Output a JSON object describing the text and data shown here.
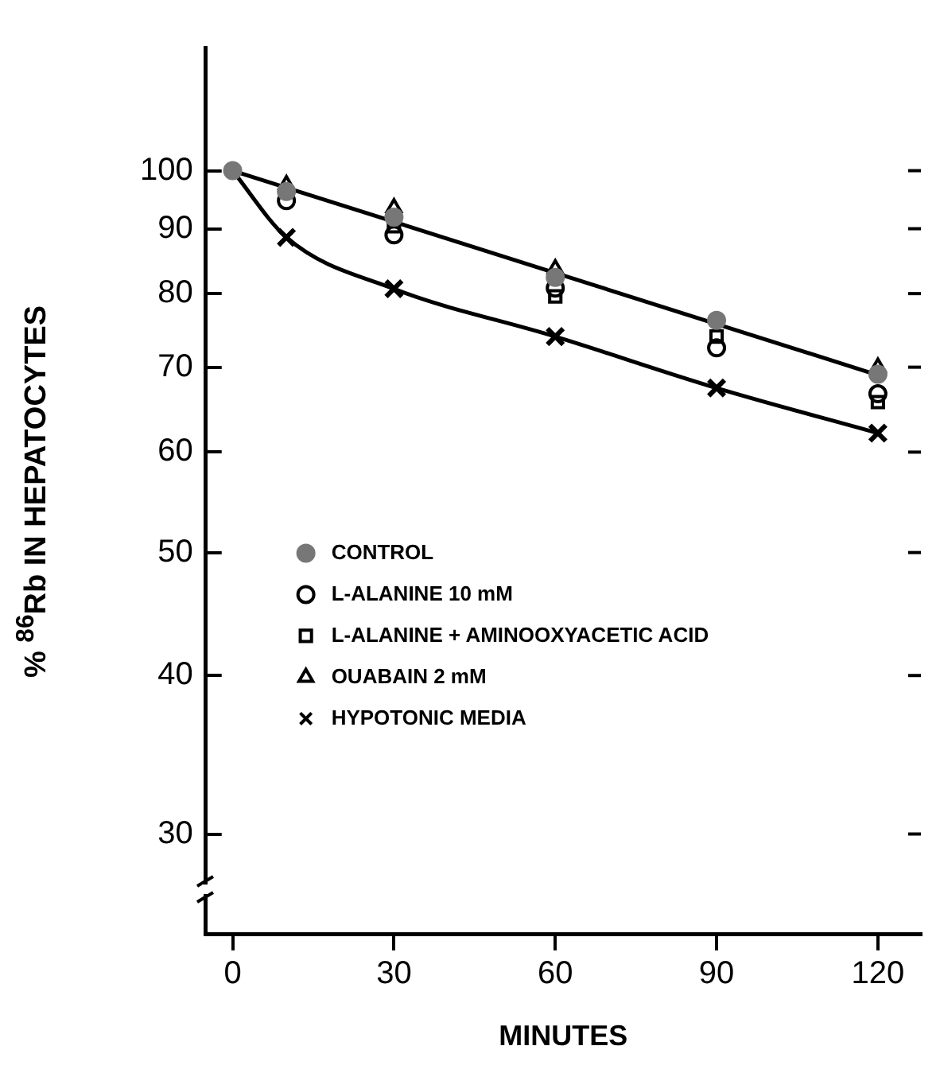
{
  "chart_data": {
    "type": "scatter",
    "xlabel": "MINUTES",
    "ylabel": "% $^{86}$Rb IN HEPATOCYTES",
    "log": "y",
    "xlim": [
      -5,
      128
    ],
    "xticks": [
      0,
      30,
      60,
      90,
      120
    ],
    "ylim": [
      25,
      125
    ],
    "yticks": [
      30,
      40,
      50,
      60,
      70,
      80,
      90,
      100
    ],
    "grid": false,
    "legend": "left",
    "x": [
      0,
      10,
      30,
      60,
      90,
      120
    ],
    "series": [
      {
        "name": "CONTROL",
        "color": "#777777",
        "marker": "circle",
        "values": [
          100,
          96.3,
          91.9,
          82.4,
          76.2,
          69.1
        ]
      },
      {
        "name": "L-ALANINE 10 mM",
        "color": "#000000",
        "marker": "circle",
        "values": [
          null,
          94.7,
          89.0,
          80.8,
          72.5,
          66.7
        ]
      },
      {
        "name": "L-ALANINE + AMINOOXYACETIC ACID",
        "color": "#000000",
        "marker": "square",
        "values": [
          null,
          null,
          90.4,
          79.6,
          74.0,
          65.7
        ]
      },
      {
        "name": "OUABAIN 2 mM",
        "color": "#000000",
        "marker": "triangle",
        "values": [
          null,
          97.5,
          93.5,
          83.7,
          null,
          70.0
        ]
      },
      {
        "name": "HYPOTONIC MEDIA",
        "color": "#000000",
        "marker": "cross",
        "values": [
          null,
          88.6,
          80.7,
          74.0,
          67.4,
          62.1
        ]
      },
      {
        "type": "line",
        "color": "#000000",
        "marker": "none",
        "line_style": "solid",
        "x": [
          0,
          120
        ],
        "values": [
          100,
          69.0
        ]
      },
      {
        "type": "line",
        "color": "#000000",
        "marker": "none",
        "line_style": "solid",
        "x": [
          0,
          10,
          30,
          60,
          90,
          120
        ],
        "values": [
          100,
          88.6,
          80.7,
          74.0,
          67.4,
          62.1
        ]
      }
    ]
  }
}
